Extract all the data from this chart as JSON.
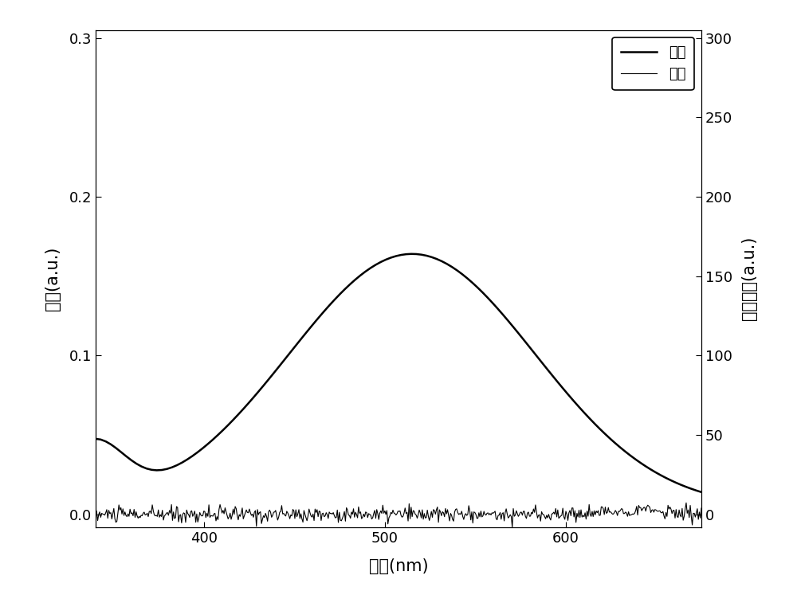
{
  "xlabel": "波长(nm)",
  "ylabel_left": "吸收(a.u.)",
  "ylabel_right": "荧光强度(a.u.)",
  "legend_absorption": "吸收",
  "legend_emission": "发射",
  "xlim": [
    340,
    675
  ],
  "ylim_left": [
    -0.008,
    0.305
  ],
  "ylim_right": [
    -8,
    305
  ],
  "yticks_left": [
    0.0,
    0.1,
    0.2,
    0.3
  ],
  "yticks_right": [
    0,
    50,
    100,
    150,
    200,
    250,
    300
  ],
  "xticks": [
    400,
    500,
    600
  ],
  "background_color": "#ffffff",
  "line_color": "#000000",
  "fontsize_label": 15,
  "fontsize_tick": 13,
  "fontsize_legend": 13
}
